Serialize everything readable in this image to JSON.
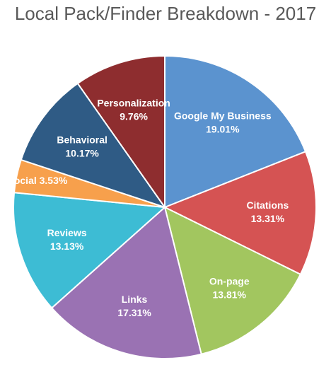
{
  "chart_data": {
    "type": "pie",
    "title": "Local Pack/Finder Breakdown - 2017",
    "start_angle_deg": 0,
    "direction": "clockwise",
    "slices": [
      {
        "label": "Google My Business",
        "value": 19.01,
        "value_label": "19.01%",
        "color": "#5B93CF",
        "label_color": "#ffffff"
      },
      {
        "label": "Citations",
        "value": 13.31,
        "value_label": "13.31%",
        "color": "#D55353",
        "label_color": "#ffffff"
      },
      {
        "label": "On-page",
        "value": 13.81,
        "value_label": "13.81%",
        "color": "#A2C65F",
        "label_color": "#ffffff"
      },
      {
        "label": "Links",
        "value": 17.31,
        "value_label": "17.31%",
        "color": "#9A72B3",
        "label_color": "#ffffff"
      },
      {
        "label": "Reviews",
        "value": 13.13,
        "value_label": "13.13%",
        "color": "#3DBCD4",
        "label_color": "#ffffff"
      },
      {
        "label": "Social",
        "value": 3.53,
        "value_label": "3.53%",
        "color": "#F7A04C",
        "label_color": "#ffffff",
        "inline_label": true
      },
      {
        "label": "Behavioral",
        "value": 10.17,
        "value_label": "10.17%",
        "color": "#2F5B85",
        "label_color": "#ffffff"
      },
      {
        "label": "Personalization",
        "value": 9.76,
        "value_label": "9.76%",
        "color": "#8E2D2F",
        "label_color": "#ffffff"
      }
    ]
  }
}
